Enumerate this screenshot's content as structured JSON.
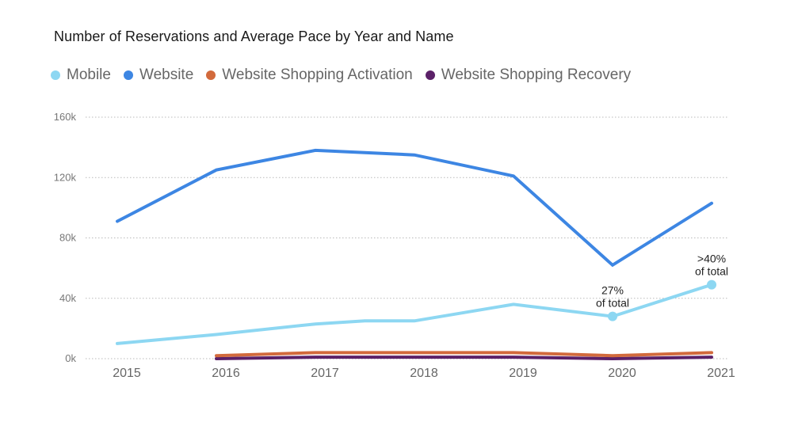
{
  "chart_data": {
    "type": "line",
    "title": "Number of Reservations and Average Pace by Year and Name",
    "xlabel": "",
    "ylabel": "",
    "x": [
      "2015",
      "2016",
      "2017",
      "2018",
      "2019",
      "2020",
      "2021"
    ],
    "ylim": [
      0,
      160000
    ],
    "yticks": [
      0,
      40000,
      80000,
      120000,
      160000
    ],
    "ytick_labels": [
      "0k",
      "40k",
      "80k",
      "120k",
      "160k"
    ],
    "grid": true,
    "legend_position": "top-left",
    "series": [
      {
        "name": "Mobile",
        "color": "#8dd7f2",
        "x": [
          "2015",
          "2016",
          "2017",
          "2017.5",
          "2018",
          "2019",
          "2020",
          "2021"
        ],
        "values": [
          10000,
          16000,
          23000,
          25000,
          25000,
          36000,
          28000,
          49000
        ]
      },
      {
        "name": "Website",
        "color": "#3d86e3",
        "x": [
          "2015",
          "2016",
          "2017",
          "2018",
          "2019",
          "2020",
          "2021"
        ],
        "values": [
          91000,
          125000,
          138000,
          135000,
          121000,
          62000,
          103000
        ]
      },
      {
        "name": "Website Shopping Activation",
        "color": "#d26a3c",
        "x": [
          "2016",
          "2017",
          "2018",
          "2019",
          "2020",
          "2021"
        ],
        "values": [
          2000,
          4000,
          4000,
          4000,
          2000,
          4000
        ]
      },
      {
        "name": "Website Shopping Recovery",
        "color": "#5b2168",
        "x": [
          "2016",
          "2017",
          "2018",
          "2019",
          "2020",
          "2021"
        ],
        "values": [
          0,
          1000,
          1000,
          1000,
          0,
          1000
        ]
      }
    ],
    "annotations": [
      {
        "x": "2020",
        "y": 28000,
        "line1": "27%",
        "line2": "of total"
      },
      {
        "x": "2021",
        "y": 49000,
        "line1": ">40%",
        "line2": "of total"
      }
    ]
  }
}
